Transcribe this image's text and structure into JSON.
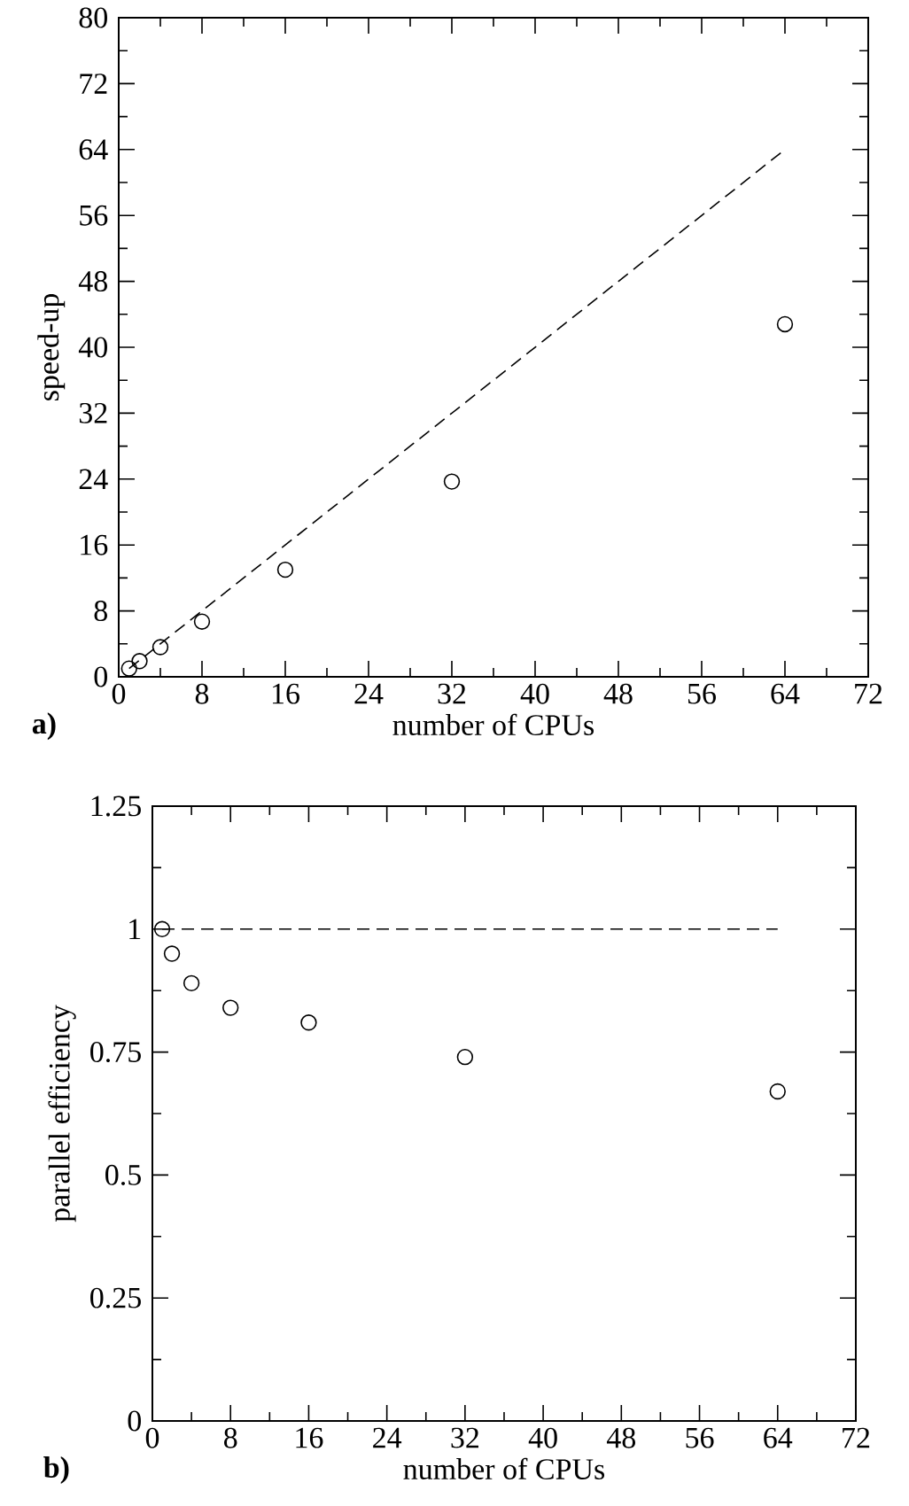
{
  "chart_data": [
    {
      "type": "scatter",
      "xlabel": "number of CPUs",
      "ylabel": "speed-up",
      "annotations": [
        "a)"
      ],
      "xlim": [
        0,
        72
      ],
      "xticks": [
        0,
        8,
        16,
        24,
        32,
        40,
        48,
        56,
        64,
        72
      ],
      "ylim": [
        0,
        80
      ],
      "yticks": [
        0,
        8,
        16,
        24,
        32,
        40,
        48,
        56,
        64,
        72,
        80
      ],
      "series": [
        {
          "marker": "circle",
          "color": "#000000",
          "x": [
            1,
            2,
            4,
            8,
            16,
            32,
            64
          ],
          "values": [
            1,
            1.9,
            3.6,
            6.7,
            13,
            23.7,
            42.8
          ]
        },
        {
          "type": "line",
          "color": "#000000",
          "line_style": "dashed",
          "x": [
            1,
            64
          ],
          "values": [
            1,
            64
          ]
        }
      ]
    },
    {
      "type": "scatter",
      "xlabel": "number of CPUs",
      "ylabel": "parallel efficiency",
      "annotations": [
        "b)"
      ],
      "xlim": [
        0,
        72
      ],
      "xticks": [
        0,
        8,
        16,
        24,
        32,
        40,
        48,
        56,
        64,
        72
      ],
      "ylim": [
        0,
        1.25
      ],
      "yticks": [
        0,
        0.25,
        0.5,
        0.75,
        1,
        1.25
      ],
      "series": [
        {
          "marker": "circle",
          "color": "#000000",
          "x": [
            1,
            2,
            4,
            8,
            16,
            32,
            64
          ],
          "values": [
            1,
            0.95,
            0.89,
            0.84,
            0.81,
            0.74,
            0.67
          ]
        },
        {
          "type": "line",
          "color": "#000000",
          "line_style": "dashed",
          "x": [
            1,
            64
          ],
          "values": [
            1,
            1
          ]
        }
      ]
    }
  ]
}
